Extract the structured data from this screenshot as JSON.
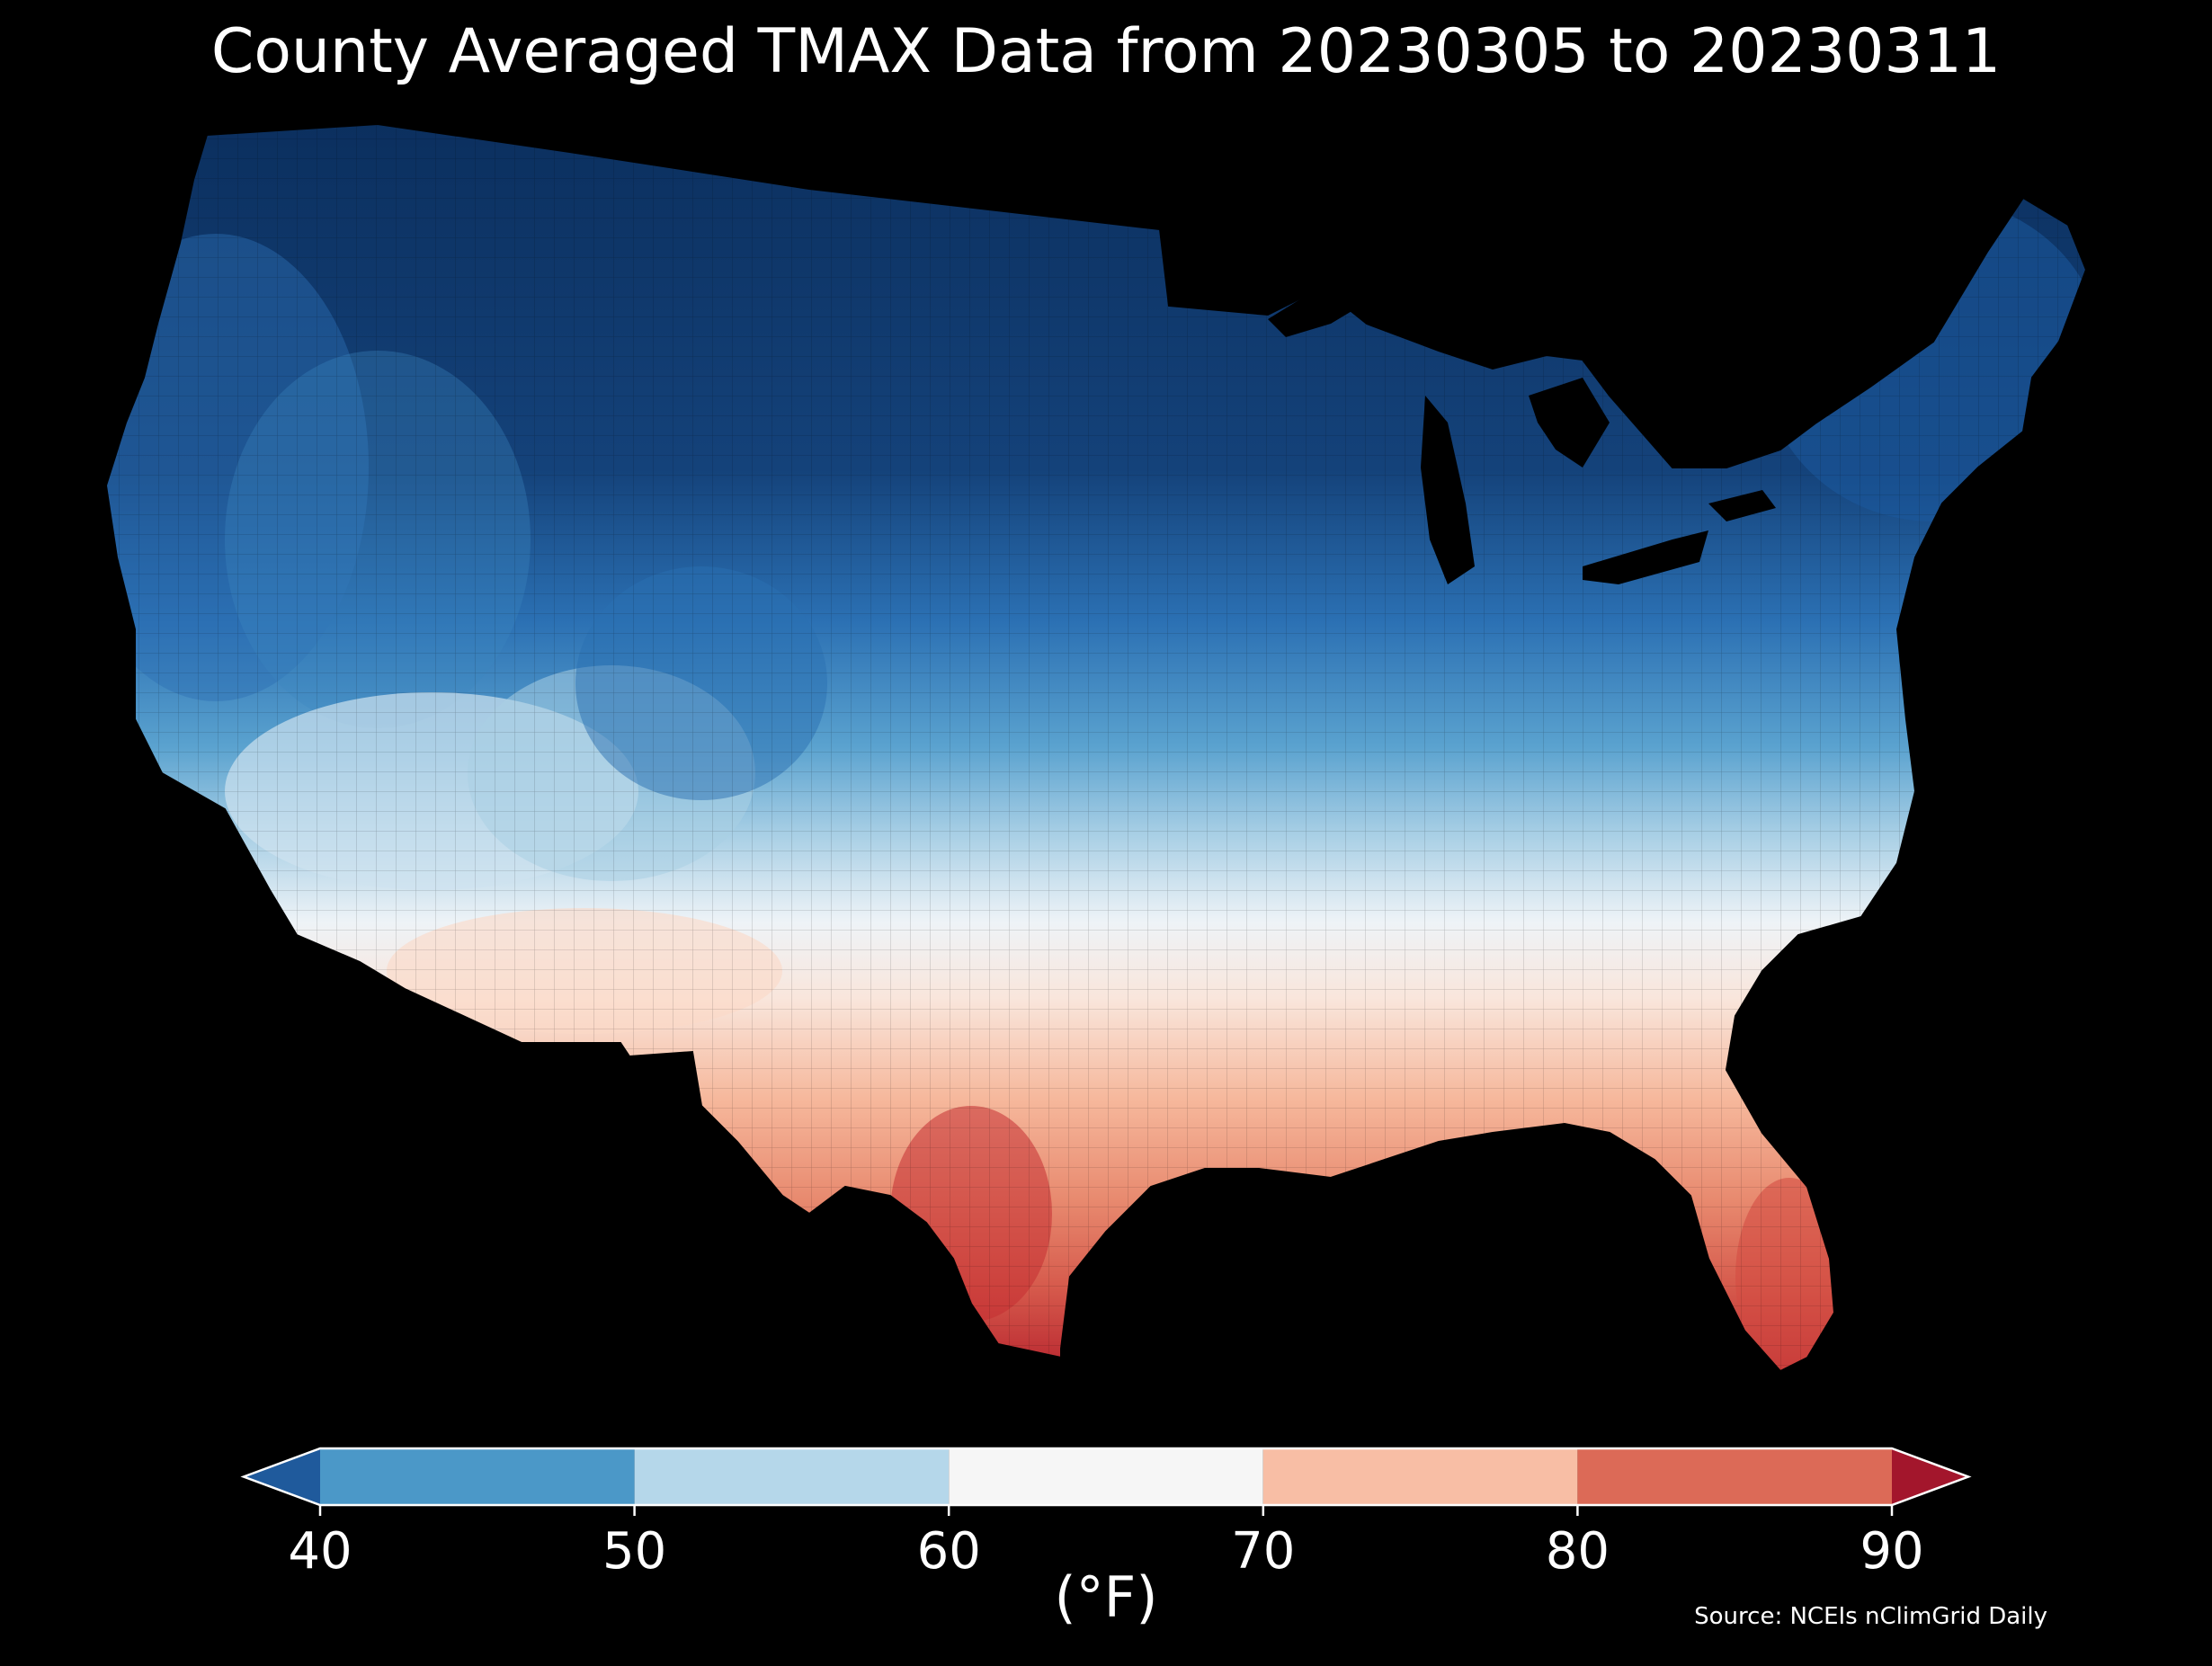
{
  "title": "County Averaged TMAX Data from 20230305 to 20230311",
  "source": "Source: NCEIs nClimGrid Daily",
  "colorbar": {
    "unit_label": "(°F)",
    "ticks": [
      "40",
      "50",
      "60",
      "70",
      "80",
      "90"
    ],
    "bins": [
      {
        "from": 40,
        "to": 50,
        "color": "#4b98c8"
      },
      {
        "from": 50,
        "to": 60,
        "color": "#b5d7ea"
      },
      {
        "from": 60,
        "to": 70,
        "color": "#f6f6f6"
      },
      {
        "from": 70,
        "to": 80,
        "color": "#f8bea5"
      },
      {
        "from": 80,
        "to": 90,
        "color": "#dc6a57"
      }
    ],
    "under_color": "#1f5a9c",
    "over_color": "#a3162c"
  },
  "colors": {
    "background": "#000000",
    "coldest": "#0b2f5e",
    "cold": "#2168b0",
    "cool": "#4b98c8",
    "mild": "#b5d7ea",
    "neutral": "#f6f6f6",
    "warm": "#f8bea5",
    "hot": "#dc6a57",
    "hottest": "#b7242e"
  }
}
